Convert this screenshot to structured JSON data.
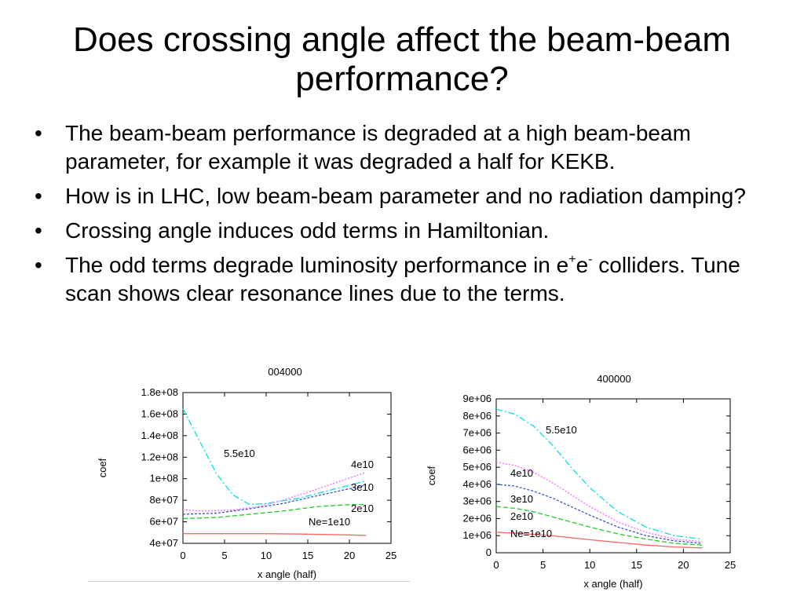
{
  "slide": {
    "title": "Does crossing angle affect the beam-beam performance?",
    "bullets": [
      {
        "text": "The beam-beam performance is degraded at a high beam-beam parameter, for example it was degraded a half for KEKB."
      },
      {
        "text": "How is in LHC, low beam-beam parameter and no radiation damping?"
      },
      {
        "text": "Crossing angle induces odd terms in Hamiltonian."
      },
      {
        "text_before": "The odd terms degrade luminosity performance in e",
        "sup1": "+",
        "mid": "e",
        "sup2": "-",
        "text_after": " colliders. Tune scan shows clear resonance lines due to the terms."
      }
    ]
  },
  "chart_data": [
    {
      "type": "line",
      "title": "004000",
      "xlabel": "x angle (half)",
      "ylabel": "coef",
      "xlim": [
        0,
        25
      ],
      "ylim": [
        40000000,
        180000000
      ],
      "xticks": [
        0,
        5,
        10,
        15,
        20,
        25
      ],
      "yticks": [
        40000000,
        60000000,
        80000000,
        100000000,
        120000000,
        140000000,
        160000000,
        180000000
      ],
      "ytick_labels": [
        "4e+07",
        "6e+07",
        "8e+07",
        "1e+08",
        "1.2e+08",
        "1.4e+08",
        "1.6e+08",
        "1.8e+08"
      ],
      "grid": false,
      "series": [
        {
          "name": "5.5e10",
          "color": "#00e0e8",
          "dash": "8,3,2,3",
          "x": [
            0,
            2,
            4,
            6,
            8,
            10,
            14,
            18,
            22
          ],
          "y": [
            165000000,
            135000000,
            105000000,
            85000000,
            76000000,
            77000000,
            82000000,
            90000000,
            98000000
          ]
        },
        {
          "name": "4e10",
          "color": "#ff66ff",
          "dash": "2,2",
          "x": [
            0,
            3,
            6,
            9,
            12,
            16,
            19,
            22
          ],
          "y": [
            71000000,
            70000000,
            71000000,
            74000000,
            80000000,
            90000000,
            98000000,
            106000000
          ]
        },
        {
          "name": "3e10",
          "color": "#3355cc",
          "dash": "3,2",
          "x": [
            0,
            4,
            8,
            12,
            16,
            19,
            22
          ],
          "y": [
            67000000,
            68000000,
            72000000,
            77000000,
            84000000,
            89000000,
            94000000
          ]
        },
        {
          "name": "2e10",
          "color": "#22cc22",
          "dash": "6,3",
          "x": [
            0,
            4,
            8,
            12,
            16,
            20,
            22
          ],
          "y": [
            63000000,
            64000000,
            67000000,
            70000000,
            74000000,
            76000000,
            76000000
          ]
        },
        {
          "name": "Ne=1e10",
          "color": "#ff6666",
          "dash": "",
          "x": [
            0,
            5,
            10,
            15,
            20,
            22
          ],
          "y": [
            49000000,
            49000000,
            49000000,
            48500000,
            47800000,
            47400000
          ]
        }
      ],
      "annotations": [
        "5.5e10",
        "4e10",
        "3e10",
        "2e10",
        "Ne=1e10"
      ]
    },
    {
      "type": "line",
      "title": "400000",
      "xlabel": "x angle (half)",
      "ylabel": "coef",
      "xlim": [
        0,
        25
      ],
      "ylim": [
        0,
        9000000
      ],
      "xticks": [
        0,
        5,
        10,
        15,
        20,
        25
      ],
      "yticks": [
        0,
        1000000,
        2000000,
        3000000,
        4000000,
        5000000,
        6000000,
        7000000,
        8000000,
        9000000
      ],
      "ytick_labels": [
        "0",
        "1e+06",
        "2e+06",
        "3e+06",
        "4e+06",
        "5e+06",
        "6e+06",
        "7e+06",
        "8e+06",
        "9e+06"
      ],
      "grid": false,
      "series": [
        {
          "name": "5.5e10",
          "color": "#00e0e8",
          "dash": "8,3,2,3",
          "x": [
            0,
            2,
            4,
            6,
            8,
            10,
            13,
            16,
            19,
            22
          ],
          "y": [
            8400000,
            8100000,
            7400000,
            6300000,
            5000000,
            3800000,
            2400000,
            1500000,
            1000000,
            800000
          ]
        },
        {
          "name": "4e10",
          "color": "#ff66ff",
          "dash": "2,2",
          "x": [
            0,
            2,
            4,
            6,
            8,
            10,
            13,
            16,
            19,
            22
          ],
          "y": [
            5300000,
            5100000,
            4700000,
            4100000,
            3400000,
            2700000,
            1800000,
            1200000,
            800000,
            650000
          ]
        },
        {
          "name": "3e10",
          "color": "#3355cc",
          "dash": "3,2",
          "x": [
            0,
            2,
            4,
            6,
            8,
            10,
            13,
            16,
            19,
            22
          ],
          "y": [
            4000000,
            3900000,
            3600000,
            3200000,
            2700000,
            2200000,
            1500000,
            1000000,
            700000,
            550000
          ]
        },
        {
          "name": "2e10",
          "color": "#22cc22",
          "dash": "6,3",
          "x": [
            0,
            2,
            4,
            6,
            8,
            10,
            13,
            16,
            19,
            22
          ],
          "y": [
            2700000,
            2600000,
            2400000,
            2100000,
            1800000,
            1500000,
            1100000,
            800000,
            550000,
            450000
          ]
        },
        {
          "name": "Ne=1e10",
          "color": "#ff6666",
          "dash": "",
          "x": [
            0,
            2,
            4,
            6,
            8,
            10,
            13,
            16,
            19,
            22
          ],
          "y": [
            1200000,
            1150000,
            1080000,
            990000,
            880000,
            760000,
            600000,
            450000,
            340000,
            280000
          ]
        }
      ],
      "annotations": [
        "5.5e10",
        "4e10",
        "3e10",
        "2e10",
        "Ne=1e10"
      ]
    }
  ]
}
